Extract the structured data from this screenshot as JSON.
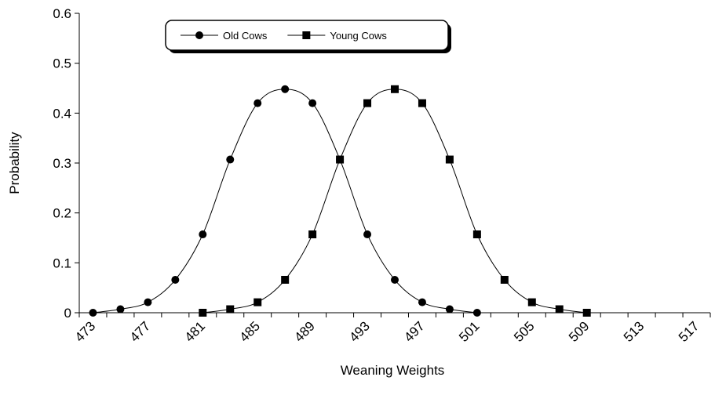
{
  "chart_data": {
    "type": "line",
    "x_label": "Weaning Weights",
    "y_label": "Probability",
    "categories": [
      "473",
      null,
      "477",
      null,
      "481",
      null,
      "485",
      null,
      "489",
      null,
      "493",
      null,
      "497",
      null,
      "501",
      null,
      "505",
      null,
      "509",
      null,
      "513",
      null,
      "517"
    ],
    "series": [
      {
        "name": "Old Cows",
        "marker": "circle",
        "color": "#000000",
        "values": [
          0,
          0.007,
          0.021,
          0.066,
          0.157,
          0.307,
          0.42,
          0.448,
          0.42,
          0.307,
          0.157,
          0.066,
          0.021,
          0.007,
          0,
          null,
          null,
          null,
          null,
          null,
          null,
          null,
          null
        ]
      },
      {
        "name": "Young Cows",
        "marker": "square",
        "color": "#000000",
        "values": [
          null,
          null,
          null,
          null,
          0,
          0.007,
          0.021,
          0.066,
          0.157,
          0.307,
          0.42,
          0.448,
          0.42,
          0.307,
          0.157,
          0.066,
          0.021,
          0.007,
          0,
          null,
          null,
          null,
          null
        ]
      }
    ],
    "ylim": [
      0,
      0.6
    ],
    "yticks": [
      0,
      0.1,
      0.2,
      0.3,
      0.4,
      0.5,
      0.6
    ],
    "grid": false,
    "legend": "top"
  }
}
